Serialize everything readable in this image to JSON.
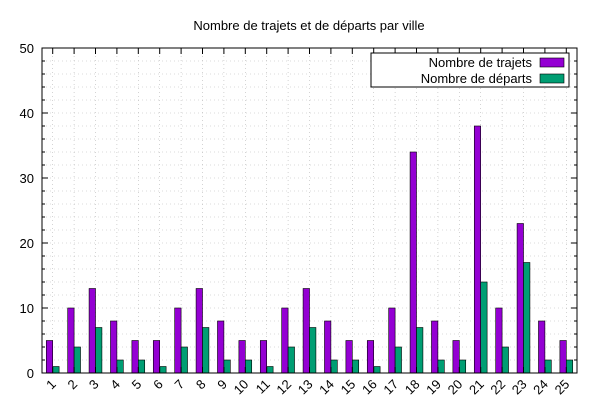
{
  "chart_data": {
    "type": "bar",
    "title": "Nombre de trajets et de départs par ville",
    "xlabel": "",
    "ylabel": "",
    "categories": [
      "1",
      "2",
      "3",
      "4",
      "5",
      "6",
      "7",
      "8",
      "9",
      "10",
      "11",
      "12",
      "13",
      "14",
      "15",
      "16",
      "17",
      "18",
      "19",
      "20",
      "21",
      "22",
      "23",
      "24",
      "25"
    ],
    "series": [
      {
        "name": "Nombre de trajets",
        "color": "#9400d3",
        "values": [
          5,
          10,
          13,
          8,
          5,
          5,
          10,
          13,
          8,
          5,
          5,
          10,
          13,
          8,
          5,
          5,
          10,
          34,
          8,
          5,
          38,
          10,
          23,
          8,
          5
        ]
      },
      {
        "name": "Nombre de départs",
        "color": "#009e73",
        "values": [
          1,
          4,
          7,
          2,
          2,
          1,
          4,
          7,
          2,
          2,
          1,
          4,
          7,
          2,
          2,
          1,
          4,
          7,
          2,
          2,
          14,
          4,
          17,
          2,
          2
        ]
      }
    ],
    "ylim": [
      0,
      50
    ],
    "yticks": [
      0,
      10,
      20,
      30,
      40,
      50
    ],
    "grid": true,
    "legend": "top-right"
  }
}
